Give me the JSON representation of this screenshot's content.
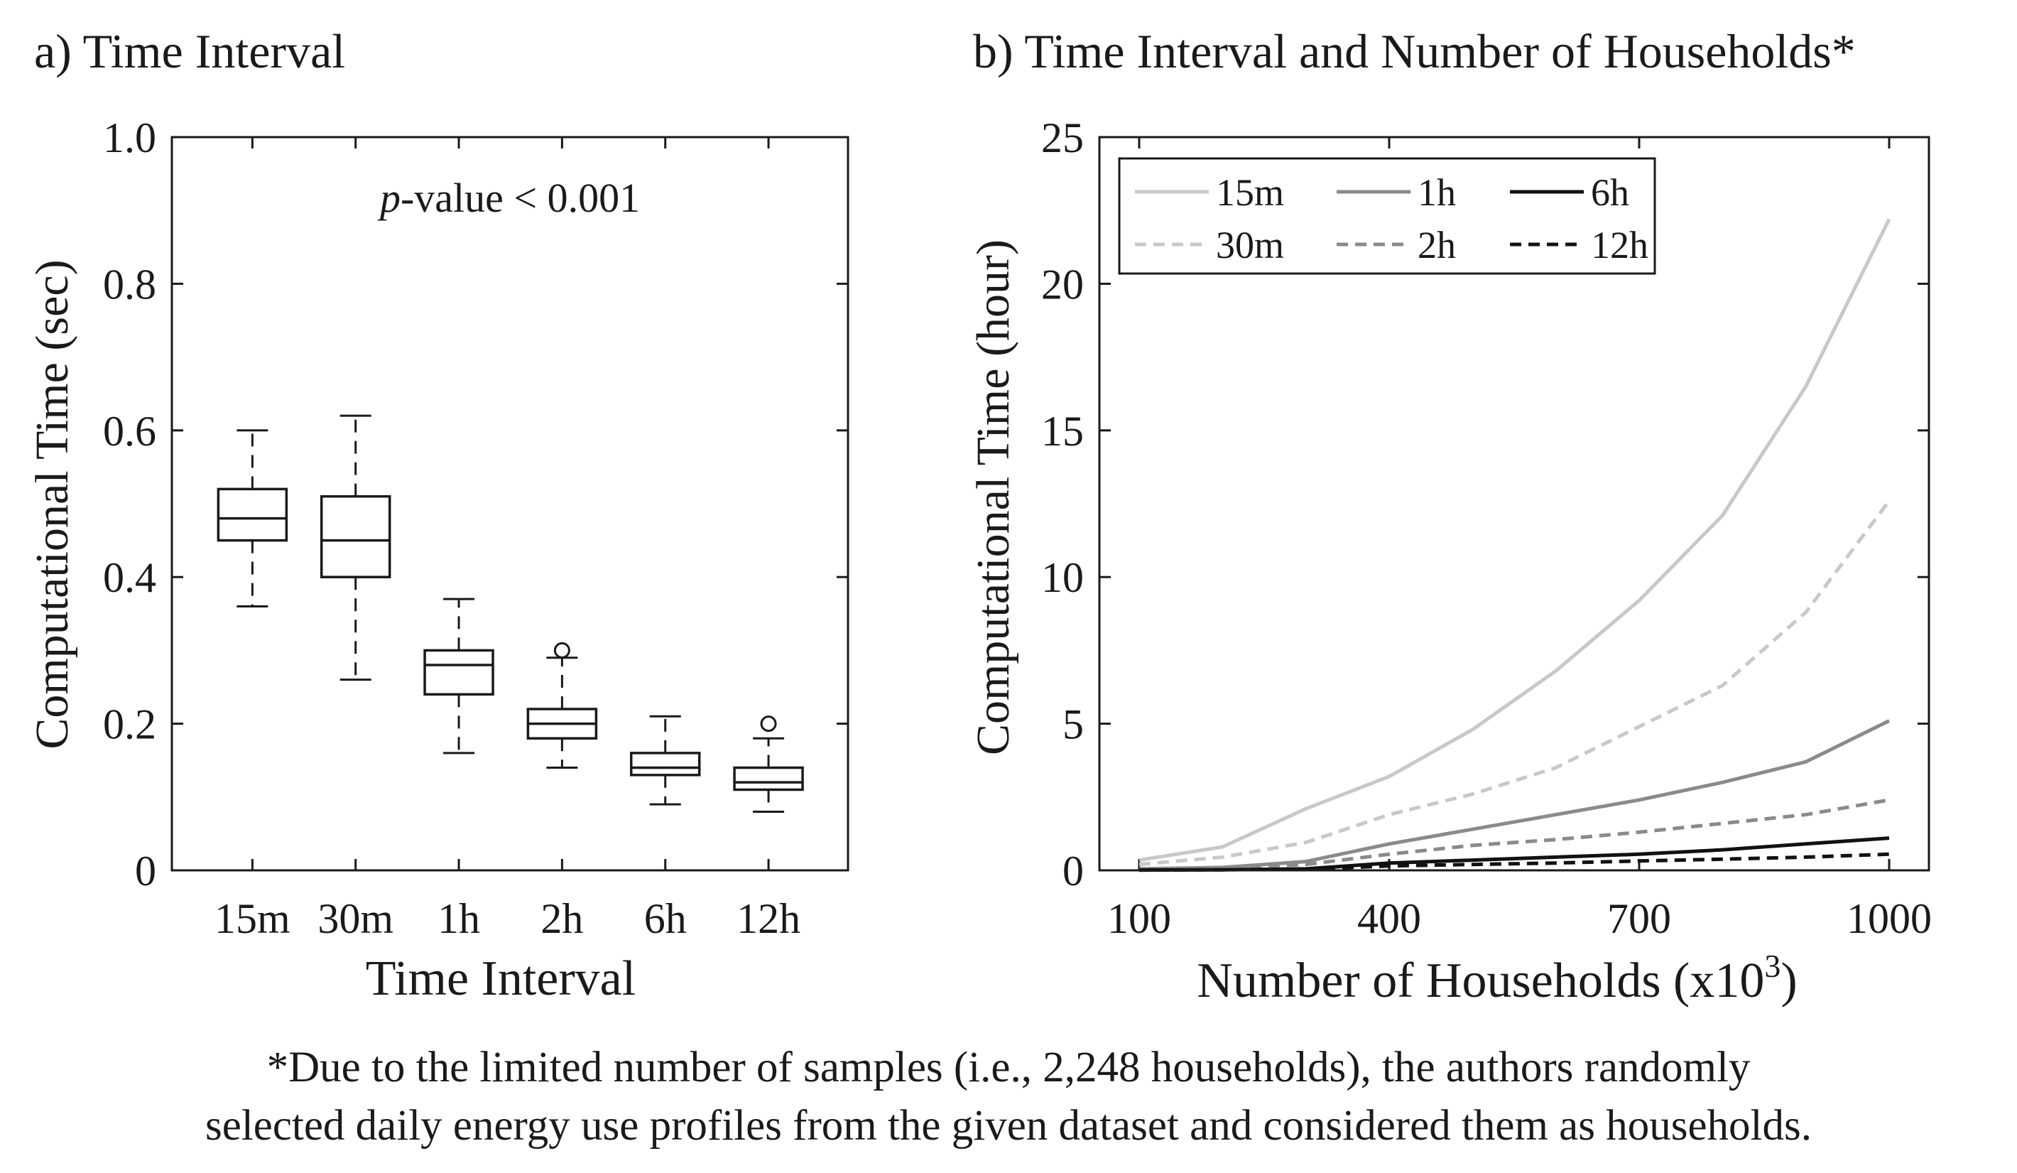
{
  "chart_data": [
    {
      "type": "box",
      "panel_label": "a) Time Interval",
      "xlabel": "Time Interval",
      "ylabel": "Computational Time (sec)",
      "annotation": {
        "italic": "p",
        "rest": "-value < 0.001"
      },
      "ylim": [
        0,
        1.0
      ],
      "yticks": [
        0,
        0.2,
        0.4,
        0.6,
        0.8,
        1.0
      ],
      "ytick_labels": [
        "0",
        "0.2",
        "0.4",
        "0.6",
        "0.8",
        "1.0"
      ],
      "categories": [
        "15m",
        "30m",
        "1h",
        "2h",
        "6h",
        "12h"
      ],
      "boxes": [
        {
          "whisker_low": 0.36,
          "q1": 0.45,
          "median": 0.48,
          "q3": 0.52,
          "whisker_high": 0.6,
          "outliers": []
        },
        {
          "whisker_low": 0.26,
          "q1": 0.4,
          "median": 0.45,
          "q3": 0.51,
          "whisker_high": 0.62,
          "outliers": []
        },
        {
          "whisker_low": 0.16,
          "q1": 0.24,
          "median": 0.28,
          "q3": 0.3,
          "whisker_high": 0.37,
          "outliers": []
        },
        {
          "whisker_low": 0.14,
          "q1": 0.18,
          "median": 0.2,
          "q3": 0.22,
          "whisker_high": 0.29,
          "outliers": [
            0.3
          ]
        },
        {
          "whisker_low": 0.09,
          "q1": 0.13,
          "median": 0.14,
          "q3": 0.16,
          "whisker_high": 0.21,
          "outliers": []
        },
        {
          "whisker_low": 0.08,
          "q1": 0.11,
          "median": 0.12,
          "q3": 0.14,
          "whisker_high": 0.18,
          "outliers": [
            0.2
          ]
        }
      ]
    },
    {
      "type": "line",
      "panel_label": "b)  Time Interval and Number of Households*",
      "xlabel": "Number of Households (x10",
      "xlabel_sup": "3",
      "xlabel_end": ")",
      "ylabel": "Computational Time (hour)",
      "xlim": [
        100,
        1000
      ],
      "ylim": [
        0,
        25
      ],
      "xticks": [
        100,
        400,
        700,
        1000
      ],
      "xtick_labels": [
        "100",
        "400",
        "700",
        "1000"
      ],
      "yticks": [
        0,
        5,
        10,
        15,
        20,
        25
      ],
      "ytick_labels": [
        "0",
        "5",
        "10",
        "15",
        "20",
        "25"
      ],
      "x": [
        100,
        200,
        300,
        400,
        500,
        600,
        700,
        800,
        900,
        1000
      ],
      "series": [
        {
          "name": "15m",
          "color": "#c8c8c8",
          "dash": "solid",
          "values": [
            0.35,
            0.8,
            2.1,
            3.2,
            4.8,
            6.8,
            9.2,
            12.1,
            16.5,
            22.2
          ]
        },
        {
          "name": "1h",
          "color": "#8a8a8a",
          "dash": "solid",
          "values": [
            0.05,
            0.1,
            0.3,
            0.9,
            1.4,
            1.9,
            2.4,
            3.0,
            3.7,
            5.1
          ]
        },
        {
          "name": "6h",
          "color": "#111111",
          "dash": "solid",
          "values": [
            0.01,
            0.02,
            0.05,
            0.25,
            0.35,
            0.45,
            0.55,
            0.7,
            0.9,
            1.1
          ]
        },
        {
          "name": "30m",
          "color": "#c8c8c8",
          "dash": "dashed",
          "values": [
            0.2,
            0.45,
            0.95,
            1.9,
            2.6,
            3.5,
            4.9,
            6.3,
            8.8,
            12.6
          ]
        },
        {
          "name": "2h",
          "color": "#8a8a8a",
          "dash": "dashed",
          "values": [
            0.03,
            0.08,
            0.2,
            0.55,
            0.85,
            1.05,
            1.3,
            1.6,
            1.9,
            2.4
          ]
        },
        {
          "name": "12h",
          "color": "#111111",
          "dash": "dashed",
          "values": [
            0.01,
            0.02,
            0.04,
            0.15,
            0.2,
            0.25,
            0.32,
            0.38,
            0.45,
            0.55
          ]
        }
      ],
      "legend": {
        "placement": "top-left",
        "columns": 3
      }
    }
  ],
  "footnote": {
    "line1": "*Due to the limited number of samples (i.e., 2,248 households), the authors randomly",
    "line2": "selected daily energy use profiles from the given dataset and considered them as households."
  }
}
